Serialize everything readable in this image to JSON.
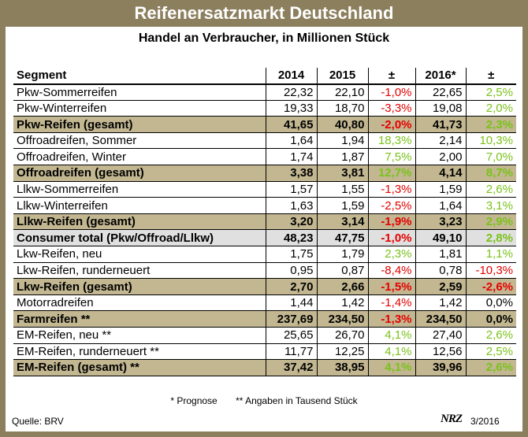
{
  "title": "Reifenersatzmarkt Deutschland",
  "subtitle": "Handel an Verbraucher, in Millionen Stück",
  "headers": [
    "Segment",
    "2014",
    "2015",
    "±",
    "2016*",
    "±"
  ],
  "rows": [
    {
      "segment": "Pkw-Sommerreifen",
      "y2014": "22,32",
      "y2015": "22,10",
      "d1": "-1,0%",
      "y2016": "22,65",
      "d2": "2,5%",
      "type": "normal"
    },
    {
      "segment": "Pkw-Winterreifen",
      "y2014": "19,33",
      "y2015": "18,70",
      "d1": "-3,3%",
      "y2016": "19,08",
      "d2": "2,0%",
      "type": "normal"
    },
    {
      "segment": "Pkw-Reifen (gesamt)",
      "y2014": "41,65",
      "y2015": "40,80",
      "d1": "-2,0%",
      "y2016": "41,73",
      "d2": "2,3%",
      "type": "sum"
    },
    {
      "segment": "Offroadreifen, Sommer",
      "y2014": "1,64",
      "y2015": "1,94",
      "d1": "18,3%",
      "y2016": "2,14",
      "d2": "10,3%",
      "type": "normal"
    },
    {
      "segment": "Offroadreifen, Winter",
      "y2014": "1,74",
      "y2015": "1,87",
      "d1": "7,5%",
      "y2016": "2,00",
      "d2": "7,0%",
      "type": "normal"
    },
    {
      "segment": "Offroadreifen (gesamt)",
      "y2014": "3,38",
      "y2015": "3,81",
      "d1": "12,7%",
      "y2016": "4,14",
      "d2": "8,7%",
      "type": "sum"
    },
    {
      "segment": "Llkw-Sommerreifen",
      "y2014": "1,57",
      "y2015": "1,55",
      "d1": "-1,3%",
      "y2016": "1,59",
      "d2": "2,6%",
      "type": "normal"
    },
    {
      "segment": "Llkw-Winterreifen",
      "y2014": "1,63",
      "y2015": "1,59",
      "d1": "-2,5%",
      "y2016": "1,64",
      "d2": "3,1%",
      "type": "normal"
    },
    {
      "segment": "Llkw-Reifen (gesamt)",
      "y2014": "3,20",
      "y2015": "3,14",
      "d1": "-1,9%",
      "y2016": "3,23",
      "d2": "2,9%",
      "type": "sum"
    },
    {
      "segment": "Consumer total (Pkw/Offroad/Llkw)",
      "y2014": "48,23",
      "y2015": "47,75",
      "d1": "-1,0%",
      "y2016": "49,10",
      "d2": "2,8%",
      "type": "consumer"
    },
    {
      "segment": "Lkw-Reifen, neu",
      "y2014": "1,75",
      "y2015": "1,79",
      "d1": "2,3%",
      "y2016": "1,81",
      "d2": "1,1%",
      "type": "normal"
    },
    {
      "segment": "Lkw-Reifen, runderneuert",
      "y2014": "0,95",
      "y2015": "0,87",
      "d1": "-8,4%",
      "y2016": "0,78",
      "d2": "-10,3%",
      "type": "normal"
    },
    {
      "segment": "Lkw-Reifen (gesamt)",
      "y2014": "2,70",
      "y2015": "2,66",
      "d1": "-1,5%",
      "y2016": "2,59",
      "d2": "-2,6%",
      "type": "sum"
    },
    {
      "segment": "Motorradreifen",
      "y2014": "1,44",
      "y2015": "1,42",
      "d1": "-1,4%",
      "y2016": "1,42",
      "d2": "0,0%",
      "type": "normal"
    },
    {
      "segment": "Farmreifen **",
      "y2014": "237,69",
      "y2015": "234,50",
      "d1": "-1,3%",
      "y2016": "234,50",
      "d2": "0,0%",
      "type": "sum"
    },
    {
      "segment": "EM-Reifen, neu **",
      "y2014": "25,65",
      "y2015": "26,70",
      "d1": "4,1%",
      "y2016": "27,40",
      "d2": "2,6%",
      "type": "normal"
    },
    {
      "segment": "EM-Reifen, runderneuert **",
      "y2014": "11,77",
      "y2015": "12,25",
      "d1": "4,1%",
      "y2016": "12,56",
      "d2": "2,5%",
      "type": "normal"
    },
    {
      "segment": "EM-Reifen (gesamt) **",
      "y2014": "37,42",
      "y2015": "38,95",
      "d1": "4,1%",
      "y2016": "39,96",
      "d2": "2,6%",
      "type": "sum"
    }
  ],
  "footnotes": [
    "* Prognose",
    "** Angaben in Tausend Stück"
  ],
  "source": "Quelle: BRV",
  "logo": "NRZ",
  "date": "3/2016",
  "colors": {
    "frame": "#8c7f5e",
    "sum_row": "#c2b791",
    "consumer_row": "#e0e0e0",
    "negative": "#e60000",
    "positive": "#7ac21a"
  }
}
